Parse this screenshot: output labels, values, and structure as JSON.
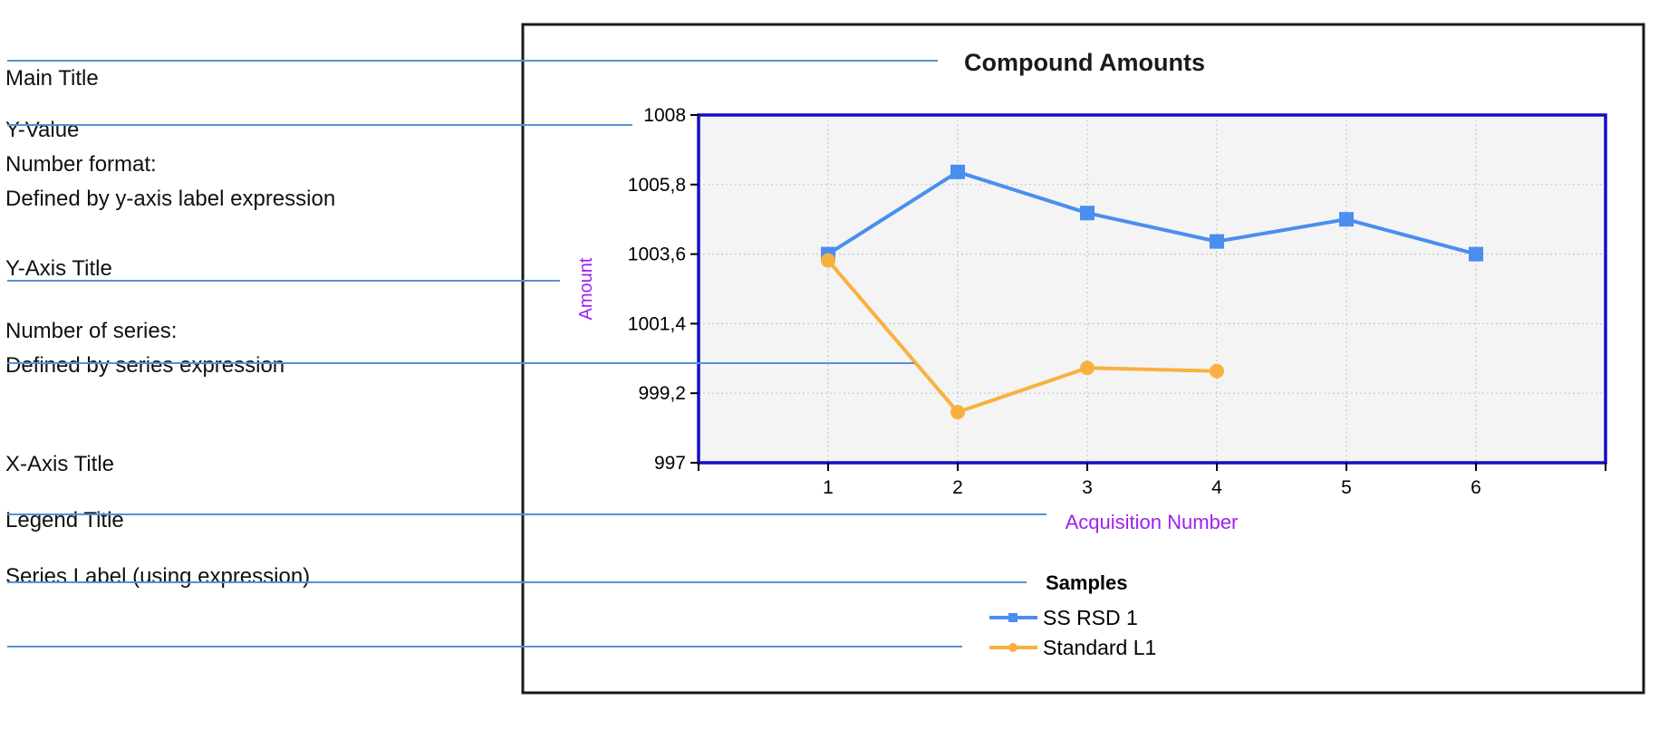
{
  "annotations": [
    {
      "lines": [
        "Main Title"
      ]
    },
    {
      "lines": [
        "Y-Value",
        "Number format:",
        "Defined by y-axis label expression"
      ]
    },
    {
      "lines": [
        "Y-Axis Title"
      ]
    },
    {
      "lines": [
        "Number of series:",
        "Defined by series expression"
      ]
    },
    {
      "lines": [
        "X-Axis Title"
      ]
    },
    {
      "lines": [
        "Legend Title"
      ]
    },
    {
      "lines": [
        "Series Label (using expression)"
      ]
    }
  ],
  "colors": {
    "frame": "#1a1a1a",
    "plot_border": "#1010c8",
    "plot_background": "#f4f4f4",
    "grid": "#c8c8c8",
    "axis_title": "#a020f0",
    "leader_line": "#5b8fd6",
    "text": "#111111"
  },
  "chart_data": {
    "type": "line",
    "title": "Compound Amounts",
    "xlabel": "Acquisition Number",
    "ylabel": "Amount",
    "xlim": [
      0,
      7
    ],
    "ylim": [
      997,
      1008
    ],
    "x_ticks": [
      1,
      2,
      3,
      4,
      5,
      6
    ],
    "x_tick_labels": [
      "1",
      "2",
      "3",
      "4",
      "5",
      "6"
    ],
    "y_ticks": [
      997,
      999.2,
      1001.4,
      1003.6,
      1005.8,
      1008
    ],
    "y_tick_labels": [
      "997",
      "999,2",
      "1001,4",
      "1003,6",
      "1005,8",
      "1008"
    ],
    "grid": true,
    "legend": {
      "title": "Samples",
      "placement": "bottom-center"
    },
    "series": [
      {
        "name": "SS RSD 1",
        "color": "#4a8eef",
        "marker": "square",
        "x": [
          1,
          2,
          3,
          4,
          5,
          6
        ],
        "values": [
          1003.6,
          1006.2,
          1004.9,
          1004.0,
          1004.7,
          1003.6
        ]
      },
      {
        "name": "Standard L1",
        "color": "#f8b13f",
        "marker": "circle",
        "x": [
          1,
          2,
          3,
          4
        ],
        "values": [
          1003.4,
          998.6,
          1000.0,
          999.9
        ]
      }
    ]
  }
}
